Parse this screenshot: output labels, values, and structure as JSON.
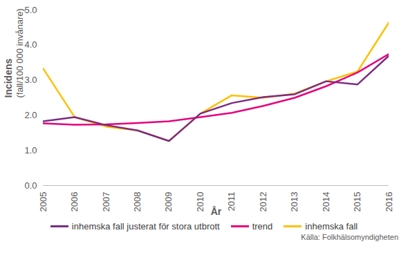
{
  "chart_data": {
    "type": "line",
    "xlabel": "År",
    "ylabel": [
      "Incidens",
      "(fall/100 000 invånare)"
    ],
    "caption": "Källa: Folkhälsomyndigheten",
    "x": [
      2005,
      2006,
      2007,
      2008,
      2009,
      2010,
      2011,
      2012,
      2013,
      2014,
      2015,
      2016
    ],
    "series": [
      {
        "name": "inhemska fall justerat för stora utbrott",
        "color": "#7b2c83",
        "values": [
          1.83,
          1.95,
          1.72,
          1.57,
          1.27,
          2.05,
          2.35,
          2.52,
          2.6,
          2.97,
          2.88,
          3.7
        ]
      },
      {
        "name": "trend",
        "color": "#e6007e",
        "values": [
          1.77,
          1.73,
          1.74,
          1.78,
          1.83,
          1.95,
          2.07,
          2.27,
          2.5,
          2.83,
          3.22,
          3.75
        ]
      },
      {
        "name": "inhemska fall",
        "color": "#ffc000",
        "values": [
          3.33,
          1.95,
          1.68,
          1.57,
          1.27,
          2.05,
          2.57,
          2.5,
          2.62,
          2.97,
          3.25,
          4.65
        ]
      }
    ],
    "xlim": [
      2005,
      2016
    ],
    "xticks": [
      2005,
      2006,
      2007,
      2008,
      2009,
      2010,
      2011,
      2012,
      2013,
      2014,
      2015,
      2016
    ],
    "ylim": [
      0,
      5
    ],
    "yticks": [
      0,
      1,
      2,
      3,
      4,
      5
    ],
    "grid": false,
    "legend": "bottom"
  }
}
